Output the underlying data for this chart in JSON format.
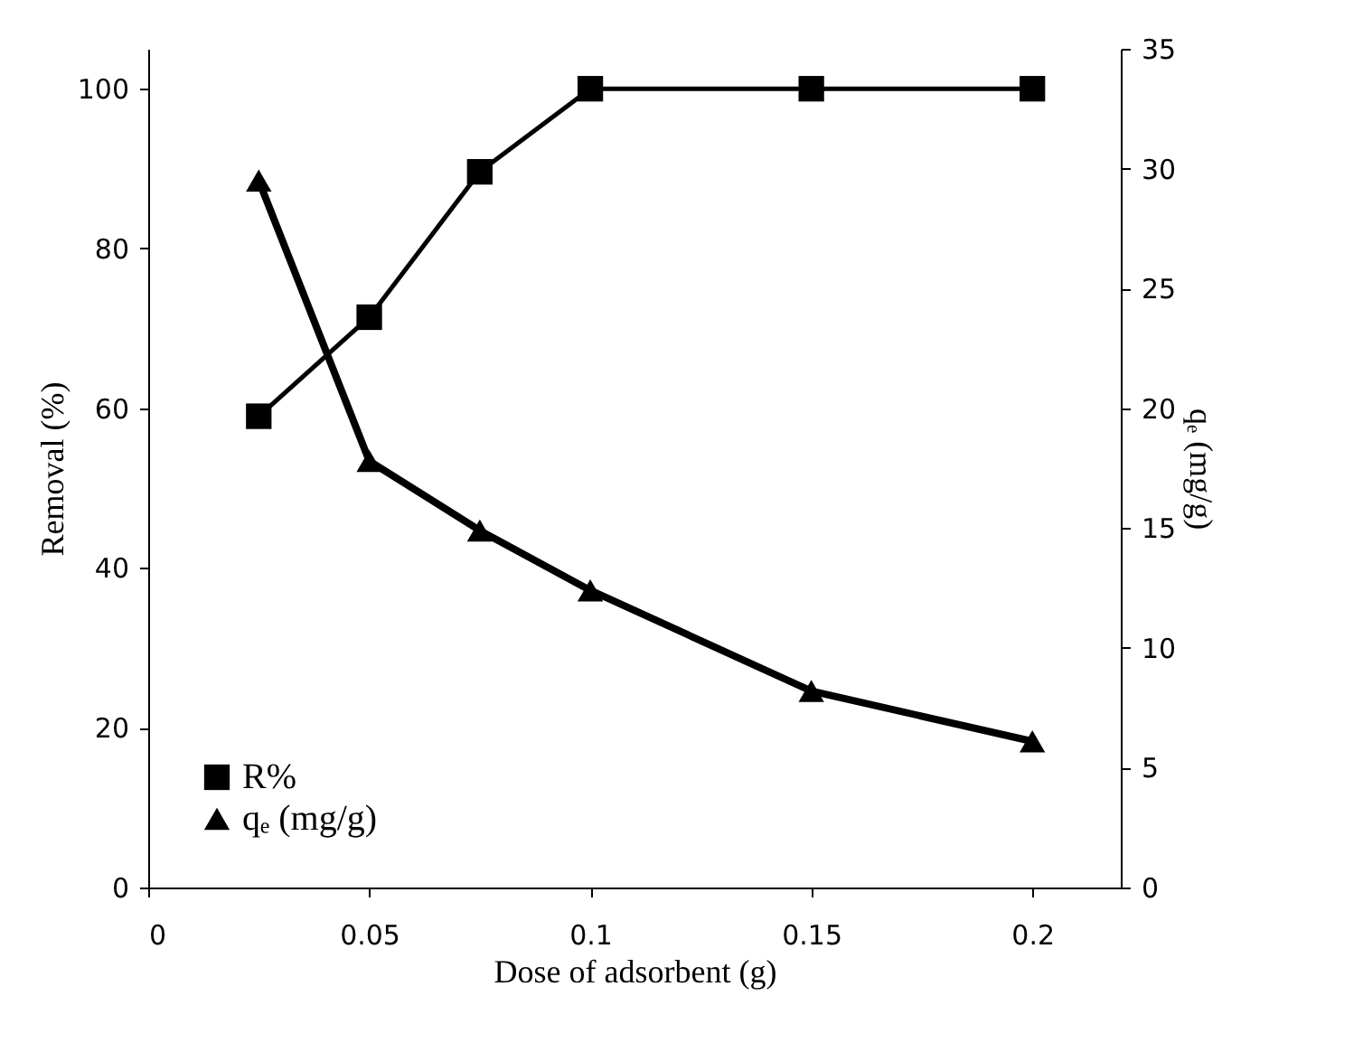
{
  "chart_data": {
    "type": "line",
    "xlabel": "Dose of adsorbent (g)",
    "ylabel": "Removal (%)",
    "y2label": "qₑ (mg/g)",
    "x": [
      0.025,
      0.05,
      0.075,
      0.1,
      0.15,
      0.2
    ],
    "series": [
      {
        "name": "R%",
        "color": "#000000",
        "marker": "square",
        "values": [
          59.0,
          71.4,
          89.6,
          100,
          100,
          100
        ]
      },
      {
        "name": "qₑ (mg/g)",
        "color": "#000000",
        "marker": "triangle",
        "axis": "y2",
        "values": [
          29.5,
          17.8,
          14.9,
          12.4,
          8.2,
          6.1
        ]
      }
    ],
    "xlim": [
      0,
      0.22
    ],
    "xticks": [
      0,
      0.05,
      0.1,
      0.15,
      0.2
    ],
    "ylim": [
      0,
      105
    ],
    "yticks": [
      0,
      20,
      40,
      60,
      80,
      100
    ],
    "y2lim": [
      0,
      35
    ],
    "y2ticks": [
      0,
      5,
      10,
      15,
      20,
      25,
      30,
      35
    ],
    "grid": false,
    "legend": "bottom left",
    "line_style": "solid"
  }
}
